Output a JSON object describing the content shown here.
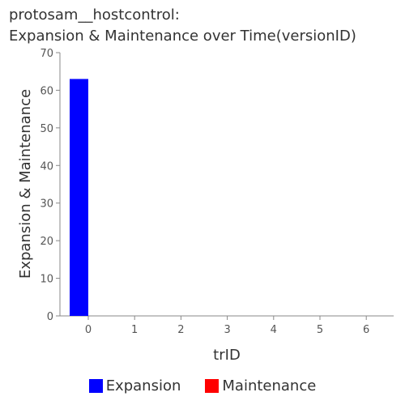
{
  "chart_data": {
    "type": "bar",
    "title_lines": [
      "protosam__hostcontrol:",
      "Expansion & Maintenance over Time(versionID)"
    ],
    "xlabel": "trID",
    "ylabel": "Expansion & Maintenance",
    "categories": [
      "0",
      "1",
      "2",
      "3",
      "4",
      "5",
      "6"
    ],
    "ylim": [
      0,
      70
    ],
    "yticks": [
      0,
      10,
      20,
      30,
      40,
      50,
      60,
      70
    ],
    "series": [
      {
        "name": "Expansion",
        "color": "#0000ff",
        "values": [
          63,
          0,
          0,
          0,
          0,
          0,
          0
        ]
      },
      {
        "name": "Maintenance",
        "color": "#ff0000",
        "values": [
          0,
          0,
          0,
          0,
          0,
          0,
          0
        ]
      }
    ],
    "legend_position": "bottom-center",
    "grid": false
  }
}
